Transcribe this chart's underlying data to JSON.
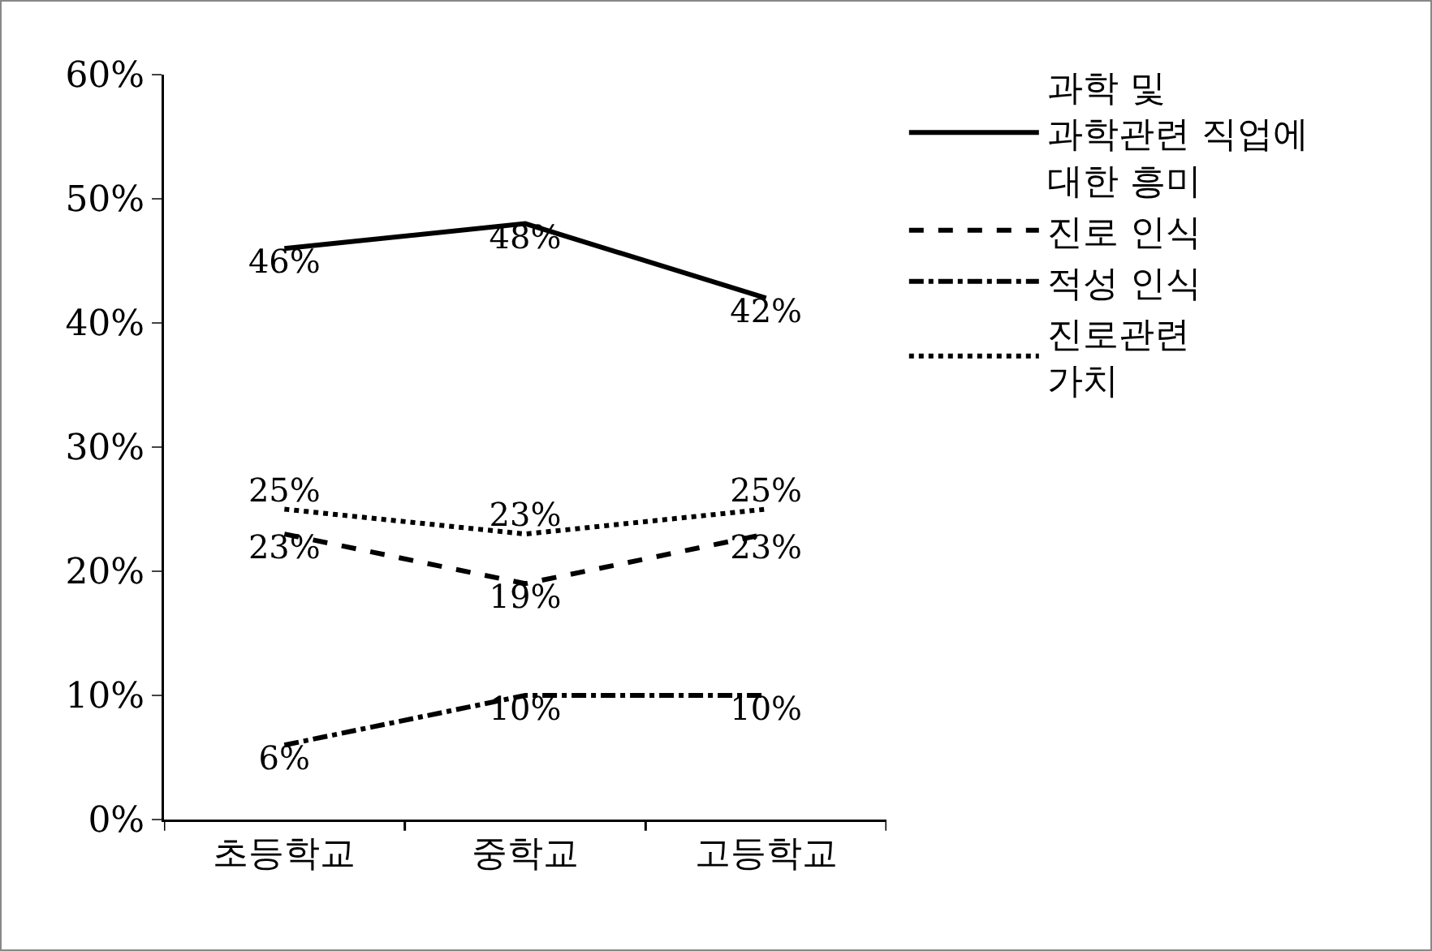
{
  "chart_data": {
    "type": "line",
    "categories": [
      "초등학교",
      "중학교",
      "고등학교"
    ],
    "series": [
      {
        "name": "과학 및\n과학관련 직업에\n대한 흥미",
        "color": "#000000",
        "line_style": "solid",
        "values": [
          46,
          48,
          42
        ],
        "value_labels": [
          "46%",
          "48%",
          "42%"
        ]
      },
      {
        "name": "진로 인식",
        "color": "#000000",
        "line_style": "dashed",
        "values": [
          23,
          19,
          23
        ],
        "value_labels": [
          "23%",
          "19%",
          "23%"
        ]
      },
      {
        "name": "적성 인식",
        "color": "#000000",
        "line_style": "dashdot",
        "values": [
          6,
          10,
          10
        ],
        "value_labels": [
          "6%",
          "10%",
          "10%"
        ]
      },
      {
        "name": "진로관련\n가치",
        "color": "#000000",
        "line_style": "dotted",
        "values": [
          25,
          23,
          25
        ],
        "value_labels": [
          "25%",
          "23%",
          "25%"
        ]
      }
    ],
    "ylim": [
      0,
      60
    ],
    "yticks": [
      {
        "value": 0,
        "label": "0%"
      },
      {
        "value": 10,
        "label": "10%"
      },
      {
        "value": 20,
        "label": "20%"
      },
      {
        "value": 30,
        "label": "30%"
      },
      {
        "value": 40,
        "label": "40%"
      },
      {
        "value": 50,
        "label": "50%"
      },
      {
        "value": 60,
        "label": "60%"
      }
    ],
    "grid": false,
    "legend": "right",
    "marker": "none"
  }
}
